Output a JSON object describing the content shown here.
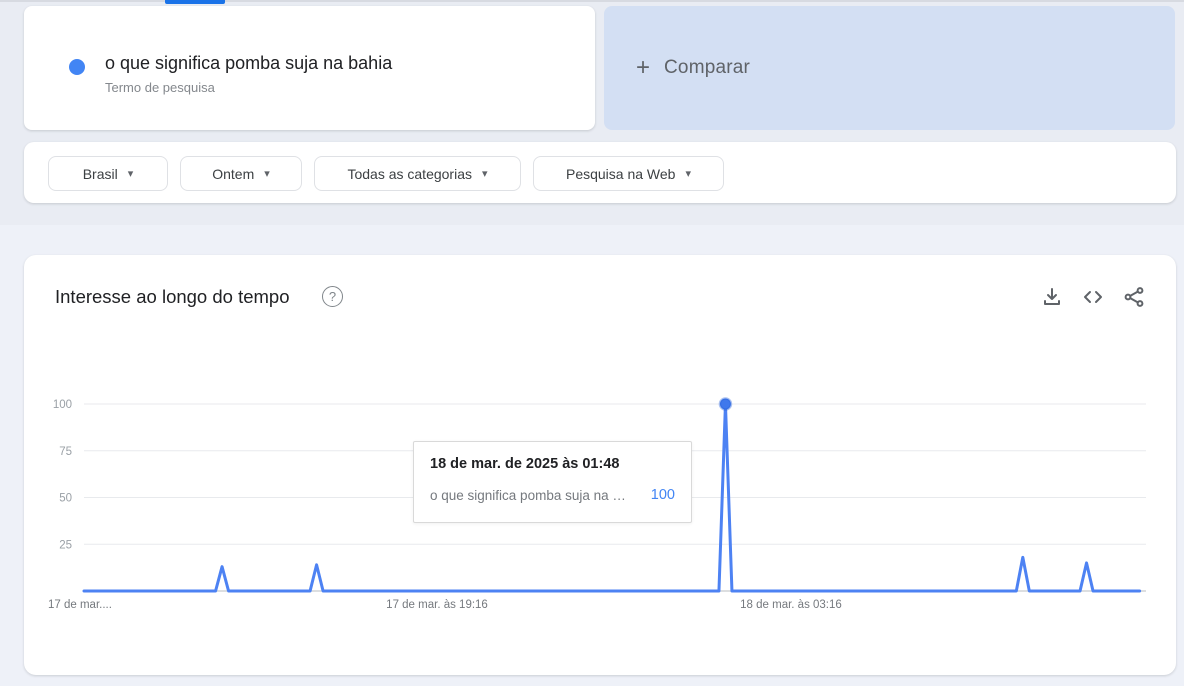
{
  "page": {
    "background": "#eef1f8",
    "header_band": "#e9ecf3",
    "active_tab_color": "#1a73e8"
  },
  "term_panel": {
    "term": "o que significa pomba suja na bahia",
    "type_label": "Termo de pesquisa",
    "dot_color": "#4285f4"
  },
  "compare_panel": {
    "plus_glyph": "+",
    "label": "Comparar"
  },
  "filters_ui": {
    "caret_glyph": "▾"
  },
  "filters": [
    {
      "id": "geo",
      "label": "Brasil"
    },
    {
      "id": "time",
      "label": "Ontem"
    },
    {
      "id": "category",
      "label": "Todas as categorias"
    },
    {
      "id": "property",
      "label": "Pesquisa na Web"
    }
  ],
  "chart_card": {
    "title": "Interesse ao longo do tempo",
    "help_glyph": "?",
    "icons": [
      "download-icon",
      "embed-icon",
      "share-icon"
    ]
  },
  "chart_data": {
    "type": "line",
    "title": "Interesse ao longo do tempo",
    "series_name": "o que significa pomba suja na bahia",
    "ylim": [
      0,
      100
    ],
    "yticks": [
      25,
      50,
      75,
      100
    ],
    "xticks": [
      {
        "label": "17 de mar....",
        "frac": 0.0,
        "align": "left"
      },
      {
        "label": "17 de mar. às 19:16",
        "frac": 0.3324,
        "align": "center"
      },
      {
        "label": "18 de mar. às 03:16",
        "frac": 0.6657,
        "align": "center"
      }
    ],
    "baseline_value": 0,
    "spikes": [
      {
        "frac": 0.13,
        "value": 13
      },
      {
        "frac": 0.219,
        "value": 14
      },
      {
        "frac": 0.604,
        "value": 100,
        "marker": true
      },
      {
        "frac": 0.884,
        "value": 18
      },
      {
        "frac": 0.944,
        "value": 15
      }
    ],
    "line_end_frac": 0.994,
    "line_color": "#4d82f3",
    "marker_color": "#3f78ec",
    "grid_color": "#e8eaed",
    "axis_color": "#c6c9ce",
    "ytick_color": "#9aa0a6",
    "xtick_color": "#75797e",
    "grid": true,
    "legend": "none"
  },
  "tooltip": {
    "date": "18 de mar. de 2025 às 01:48",
    "term": "o que significa pomba suja na …",
    "value": "100"
  }
}
